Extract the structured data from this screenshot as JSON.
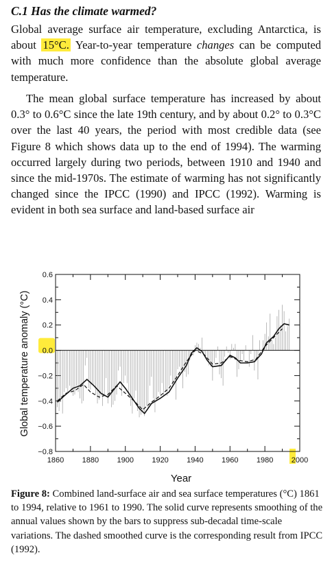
{
  "section": {
    "heading": "C.1  Has the climate warmed?"
  },
  "paragraph1": {
    "before": "Global average surface air temperature, excluding Antarctica, is about",
    "highlight": "15°C.",
    "after_a": " Year-to-year temperature ",
    "emph": "changes",
    "after_b": " can be computed with much more confidence than the absolute global average temperature."
  },
  "paragraph2": {
    "text": "The mean global surface temperature has increased by about 0.3° to 0.6°C since the late 19th century, and by about 0.2° to 0.3°C over the last 40 years, the period with most credible data (see Figure 8 which shows data up to the end of 1994). The warming occurred largely during two periods, between 1910 and 1940 and since the mid-1970s. The estimate of warming has not significantly changed since the IPCC (1990) and IPCC (1992). Warming is evident in both sea surface and land-based surface air"
  },
  "highlight_color": "#ffeb3b",
  "chart_data": {
    "type": "line",
    "xlabel": "Year",
    "ylabel": "Global temperature anomaly (°C)",
    "xlim": [
      1860,
      2000
    ],
    "ylim": [
      -0.8,
      0.6
    ],
    "x_ticks": [
      1860,
      1880,
      1900,
      1920,
      1940,
      1960,
      1980,
      2000
    ],
    "y_ticks": [
      0.6,
      0.4,
      0.2,
      0.0,
      -0.2,
      -0.4,
      -0.6,
      -0.8
    ],
    "y_tick_labels": [
      "0.6",
      "0.4",
      "0.2",
      "0.0",
      "−0.2",
      "−0.4",
      "−0.6",
      "−0.8"
    ],
    "highlighted_ticks": [
      "0.0",
      "2000"
    ],
    "reference_line_y": 0.0,
    "series": [
      {
        "style": "solid-smoothed",
        "x": [
          1861,
          1865,
          1870,
          1874,
          1878,
          1882,
          1886,
          1890,
          1894,
          1897,
          1900,
          1904,
          1908,
          1911,
          1915,
          1920,
          1925,
          1930,
          1935,
          1938,
          1941,
          1944,
          1947,
          1950,
          1955,
          1960,
          1963,
          1966,
          1970,
          1974,
          1978,
          1981,
          1985,
          1988,
          1991,
          1994
        ],
        "y": [
          -0.41,
          -0.36,
          -0.3,
          -0.28,
          -0.23,
          -0.28,
          -0.34,
          -0.37,
          -0.3,
          -0.25,
          -0.3,
          -0.38,
          -0.46,
          -0.5,
          -0.42,
          -0.38,
          -0.33,
          -0.22,
          -0.12,
          -0.02,
          0.02,
          -0.01,
          -0.08,
          -0.13,
          -0.12,
          -0.04,
          -0.06,
          -0.1,
          -0.1,
          -0.09,
          -0.03,
          0.06,
          0.11,
          0.17,
          0.21,
          0.2
        ]
      },
      {
        "style": "dashed-smoothed",
        "x": [
          1861,
          1866,
          1871,
          1876,
          1880,
          1885,
          1890,
          1895,
          1900,
          1905,
          1910,
          1915,
          1920,
          1925,
          1930,
          1935,
          1940,
          1945,
          1950,
          1955,
          1960,
          1965,
          1970,
          1975,
          1980,
          1985,
          1990
        ],
        "y": [
          -0.4,
          -0.34,
          -0.32,
          -0.27,
          -0.33,
          -0.37,
          -0.35,
          -0.28,
          -0.34,
          -0.4,
          -0.47,
          -0.41,
          -0.36,
          -0.3,
          -0.2,
          -0.09,
          0.0,
          -0.03,
          -0.11,
          -0.1,
          -0.05,
          -0.08,
          -0.09,
          -0.07,
          0.03,
          0.1,
          0.17
        ]
      },
      {
        "style": "annual-bars",
        "x": [
          1861,
          1862,
          1863,
          1864,
          1865,
          1866,
          1867,
          1868,
          1869,
          1870,
          1871,
          1872,
          1873,
          1874,
          1875,
          1876,
          1877,
          1878,
          1879,
          1880,
          1881,
          1882,
          1883,
          1884,
          1885,
          1886,
          1887,
          1888,
          1889,
          1890,
          1891,
          1892,
          1893,
          1894,
          1895,
          1896,
          1897,
          1898,
          1899,
          1900,
          1901,
          1902,
          1903,
          1904,
          1905,
          1906,
          1907,
          1908,
          1909,
          1910,
          1911,
          1912,
          1913,
          1914,
          1915,
          1916,
          1917,
          1918,
          1919,
          1920,
          1921,
          1922,
          1923,
          1924,
          1925,
          1926,
          1927,
          1928,
          1929,
          1930,
          1931,
          1932,
          1933,
          1934,
          1935,
          1936,
          1937,
          1938,
          1939,
          1940,
          1941,
          1942,
          1943,
          1944,
          1945,
          1946,
          1947,
          1948,
          1949,
          1950,
          1951,
          1952,
          1953,
          1954,
          1955,
          1956,
          1957,
          1958,
          1959,
          1960,
          1961,
          1962,
          1963,
          1964,
          1965,
          1966,
          1967,
          1968,
          1969,
          1970,
          1971,
          1972,
          1973,
          1974,
          1975,
          1976,
          1977,
          1978,
          1979,
          1980,
          1981,
          1982,
          1983,
          1984,
          1985,
          1986,
          1987,
          1988,
          1989,
          1990,
          1991,
          1992,
          1993,
          1994
        ],
        "y": [
          -0.45,
          -0.48,
          -0.38,
          -0.5,
          -0.33,
          -0.3,
          -0.34,
          -0.28,
          -0.32,
          -0.36,
          -0.35,
          -0.28,
          -0.33,
          -0.38,
          -0.42,
          -0.4,
          -0.12,
          -0.06,
          -0.3,
          -0.31,
          -0.27,
          -0.27,
          -0.35,
          -0.42,
          -0.39,
          -0.36,
          -0.44,
          -0.35,
          -0.22,
          -0.42,
          -0.36,
          -0.45,
          -0.43,
          -0.4,
          -0.35,
          -0.16,
          -0.13,
          -0.36,
          -0.26,
          -0.2,
          -0.26,
          -0.37,
          -0.44,
          -0.5,
          -0.38,
          -0.32,
          -0.48,
          -0.53,
          -0.51,
          -0.49,
          -0.52,
          -0.44,
          -0.45,
          -0.28,
          -0.21,
          -0.38,
          -0.49,
          -0.4,
          -0.33,
          -0.35,
          -0.26,
          -0.36,
          -0.32,
          -0.36,
          -0.28,
          -0.2,
          -0.27,
          -0.26,
          -0.39,
          -0.15,
          -0.13,
          -0.16,
          -0.3,
          -0.17,
          -0.21,
          -0.19,
          -0.08,
          0.0,
          -0.04,
          0.04,
          0.06,
          0.05,
          0.02,
          0.1,
          -0.02,
          -0.06,
          -0.08,
          -0.12,
          -0.13,
          -0.24,
          -0.1,
          -0.06,
          0.03,
          -0.19,
          -0.22,
          -0.28,
          -0.05,
          0.03,
          -0.02,
          -0.07,
          0.05,
          0.02,
          0.05,
          -0.21,
          -0.15,
          -0.08,
          -0.03,
          -0.08,
          0.04,
          0.0,
          -0.13,
          -0.03,
          0.12,
          -0.16,
          -0.08,
          -0.23,
          0.08,
          0.0,
          0.08,
          0.13,
          0.22,
          0.11,
          0.29,
          0.08,
          0.05,
          0.1,
          0.27,
          0.32,
          0.2,
          0.36,
          0.31,
          0.15,
          0.19,
          0.25
        ]
      }
    ]
  },
  "caption": {
    "label": "Figure 8:",
    "text": " Combined land-surface air and sea surface temperatures (°C) 1861 to 1994, relative to 1961 to 1990. The solid curve represents smoothing of the annual values shown by the bars to suppress sub-decadal time-scale variations. The dashed smoothed curve is the corresponding result from IPCC (1992)."
  }
}
